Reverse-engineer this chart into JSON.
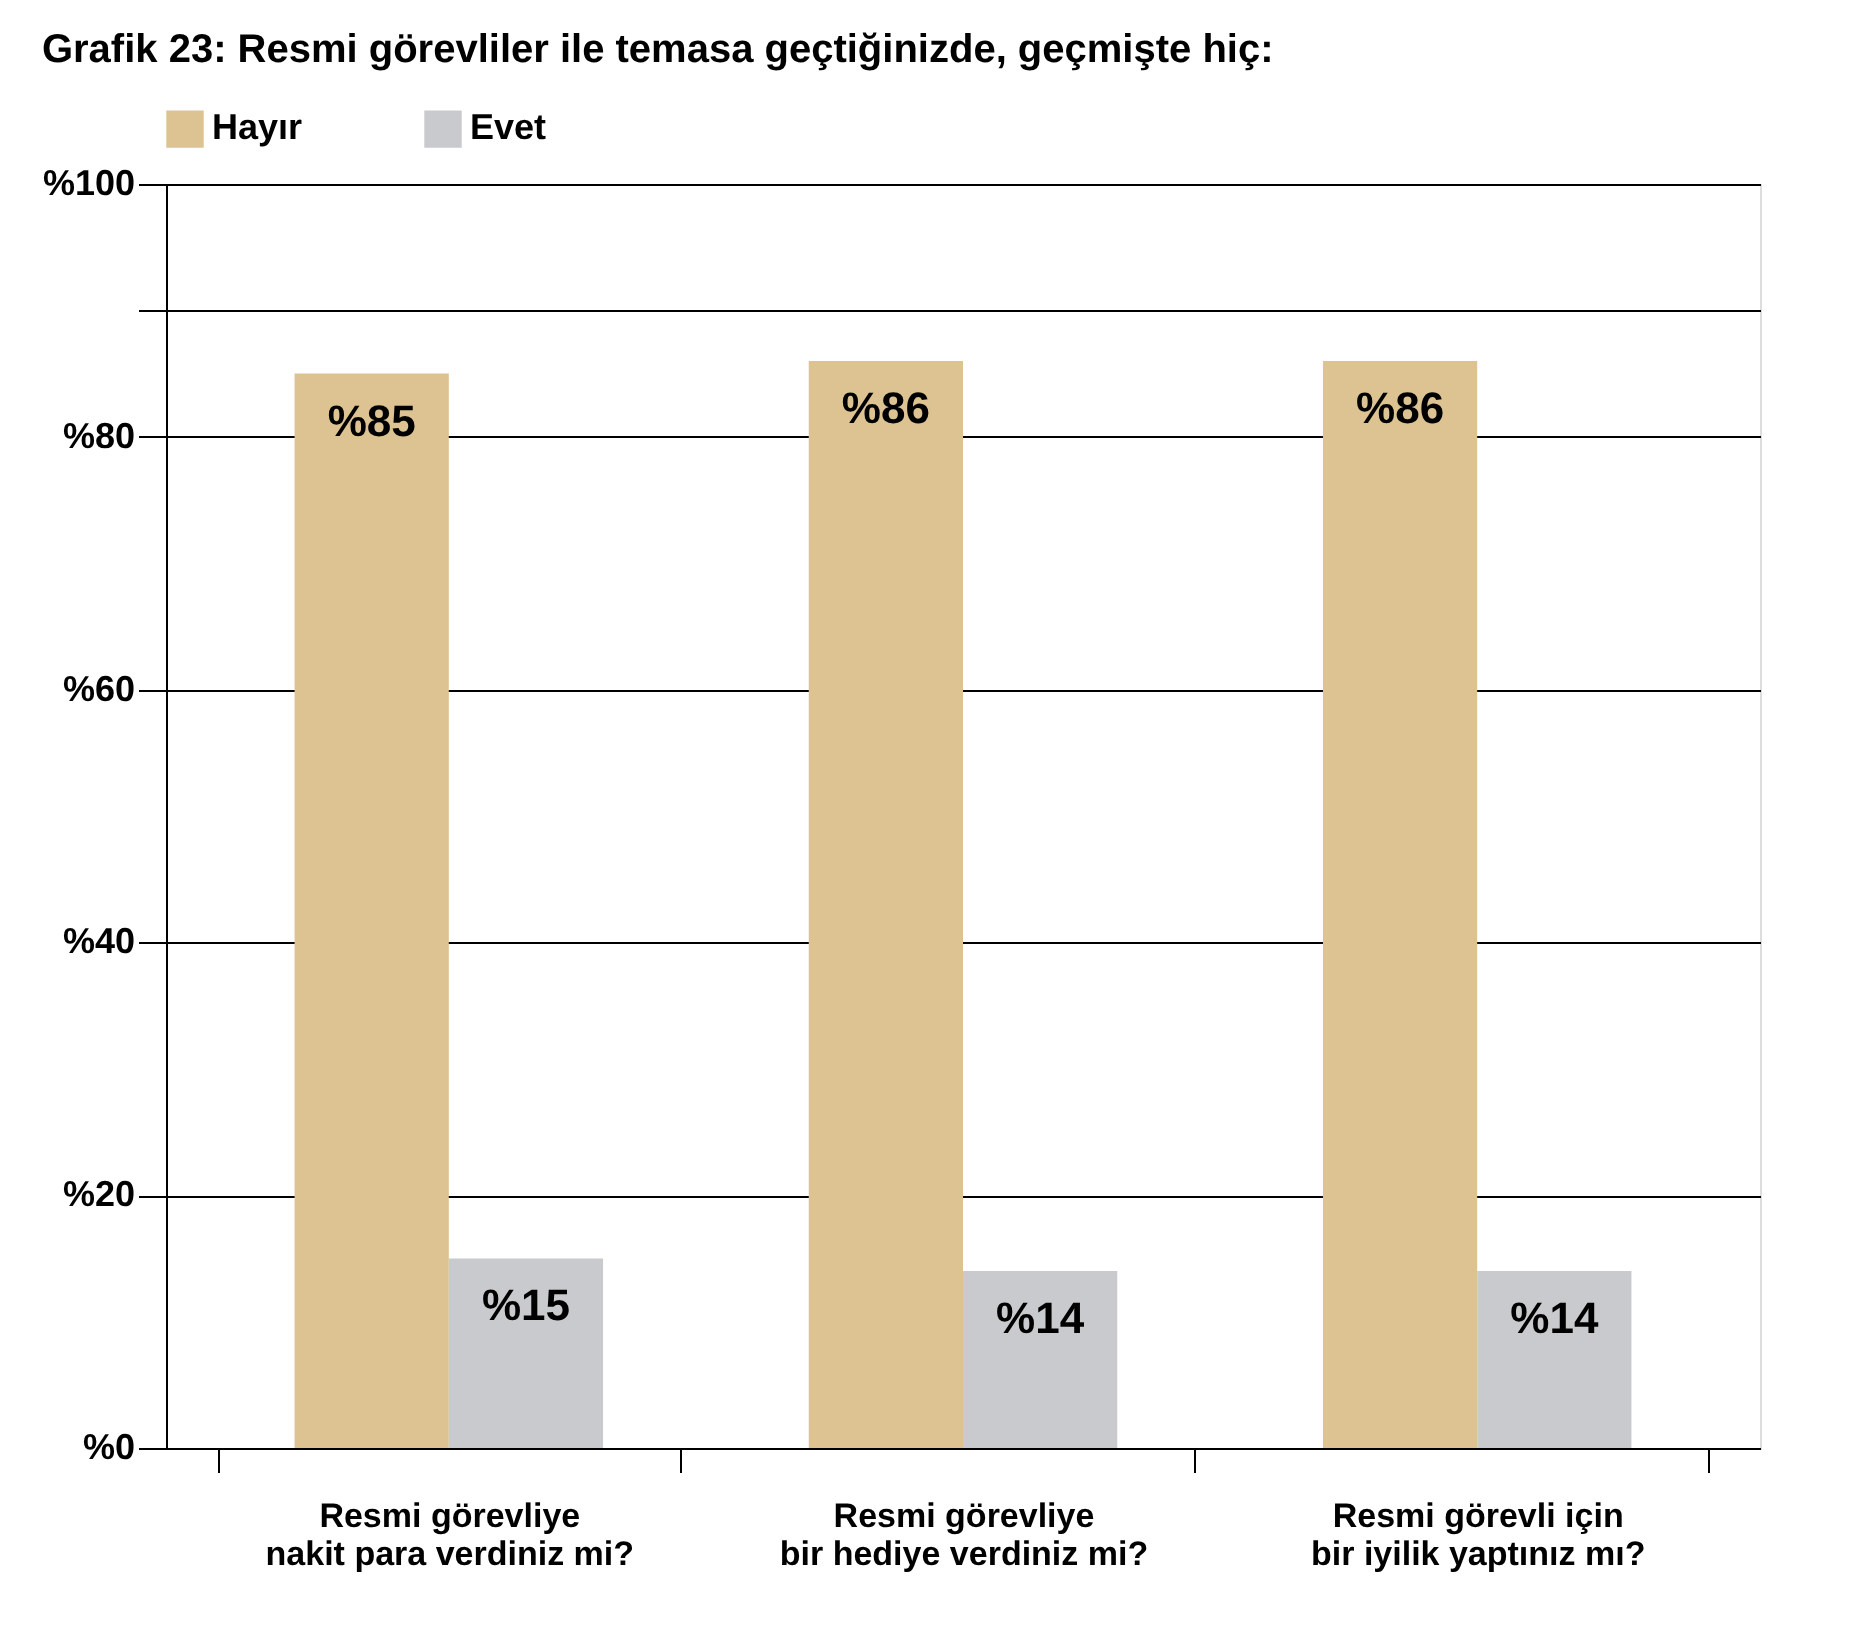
{
  "chart_data": {
    "type": "bar",
    "title": "Grafik 23: Resmi görevliler ile temasa geçtiğinizde, geçmişte hiç:",
    "categories": [
      "Resmi görevliye\nnakit para verdiniz mi?",
      "Resmi görevliye\nbir hediye verdiniz mi?",
      "Resmi görevli için\nbir iyilik yaptınız mı?"
    ],
    "series": [
      {
        "name": "Hayır",
        "color": "#dcc391",
        "values": [
          85,
          86,
          86
        ],
        "value_labels": [
          "%85",
          "%86",
          "%86"
        ]
      },
      {
        "name": "Evet",
        "color": "#c9cacd",
        "values": [
          15,
          14,
          14
        ],
        "value_labels": [
          "%15",
          "%14",
          "%14"
        ]
      }
    ],
    "ylim": [
      0,
      100
    ],
    "yticks": [
      {
        "value": 0,
        "label": "%0"
      },
      {
        "value": 20,
        "label": "%20"
      },
      {
        "value": 40,
        "label": "%40"
      },
      {
        "value": 60,
        "label": "%60"
      },
      {
        "value": 80,
        "label": "%80"
      },
      {
        "value": 90,
        "label": null
      },
      {
        "value": 100,
        "label": "%100"
      }
    ],
    "grid": "y",
    "legend": "top"
  }
}
